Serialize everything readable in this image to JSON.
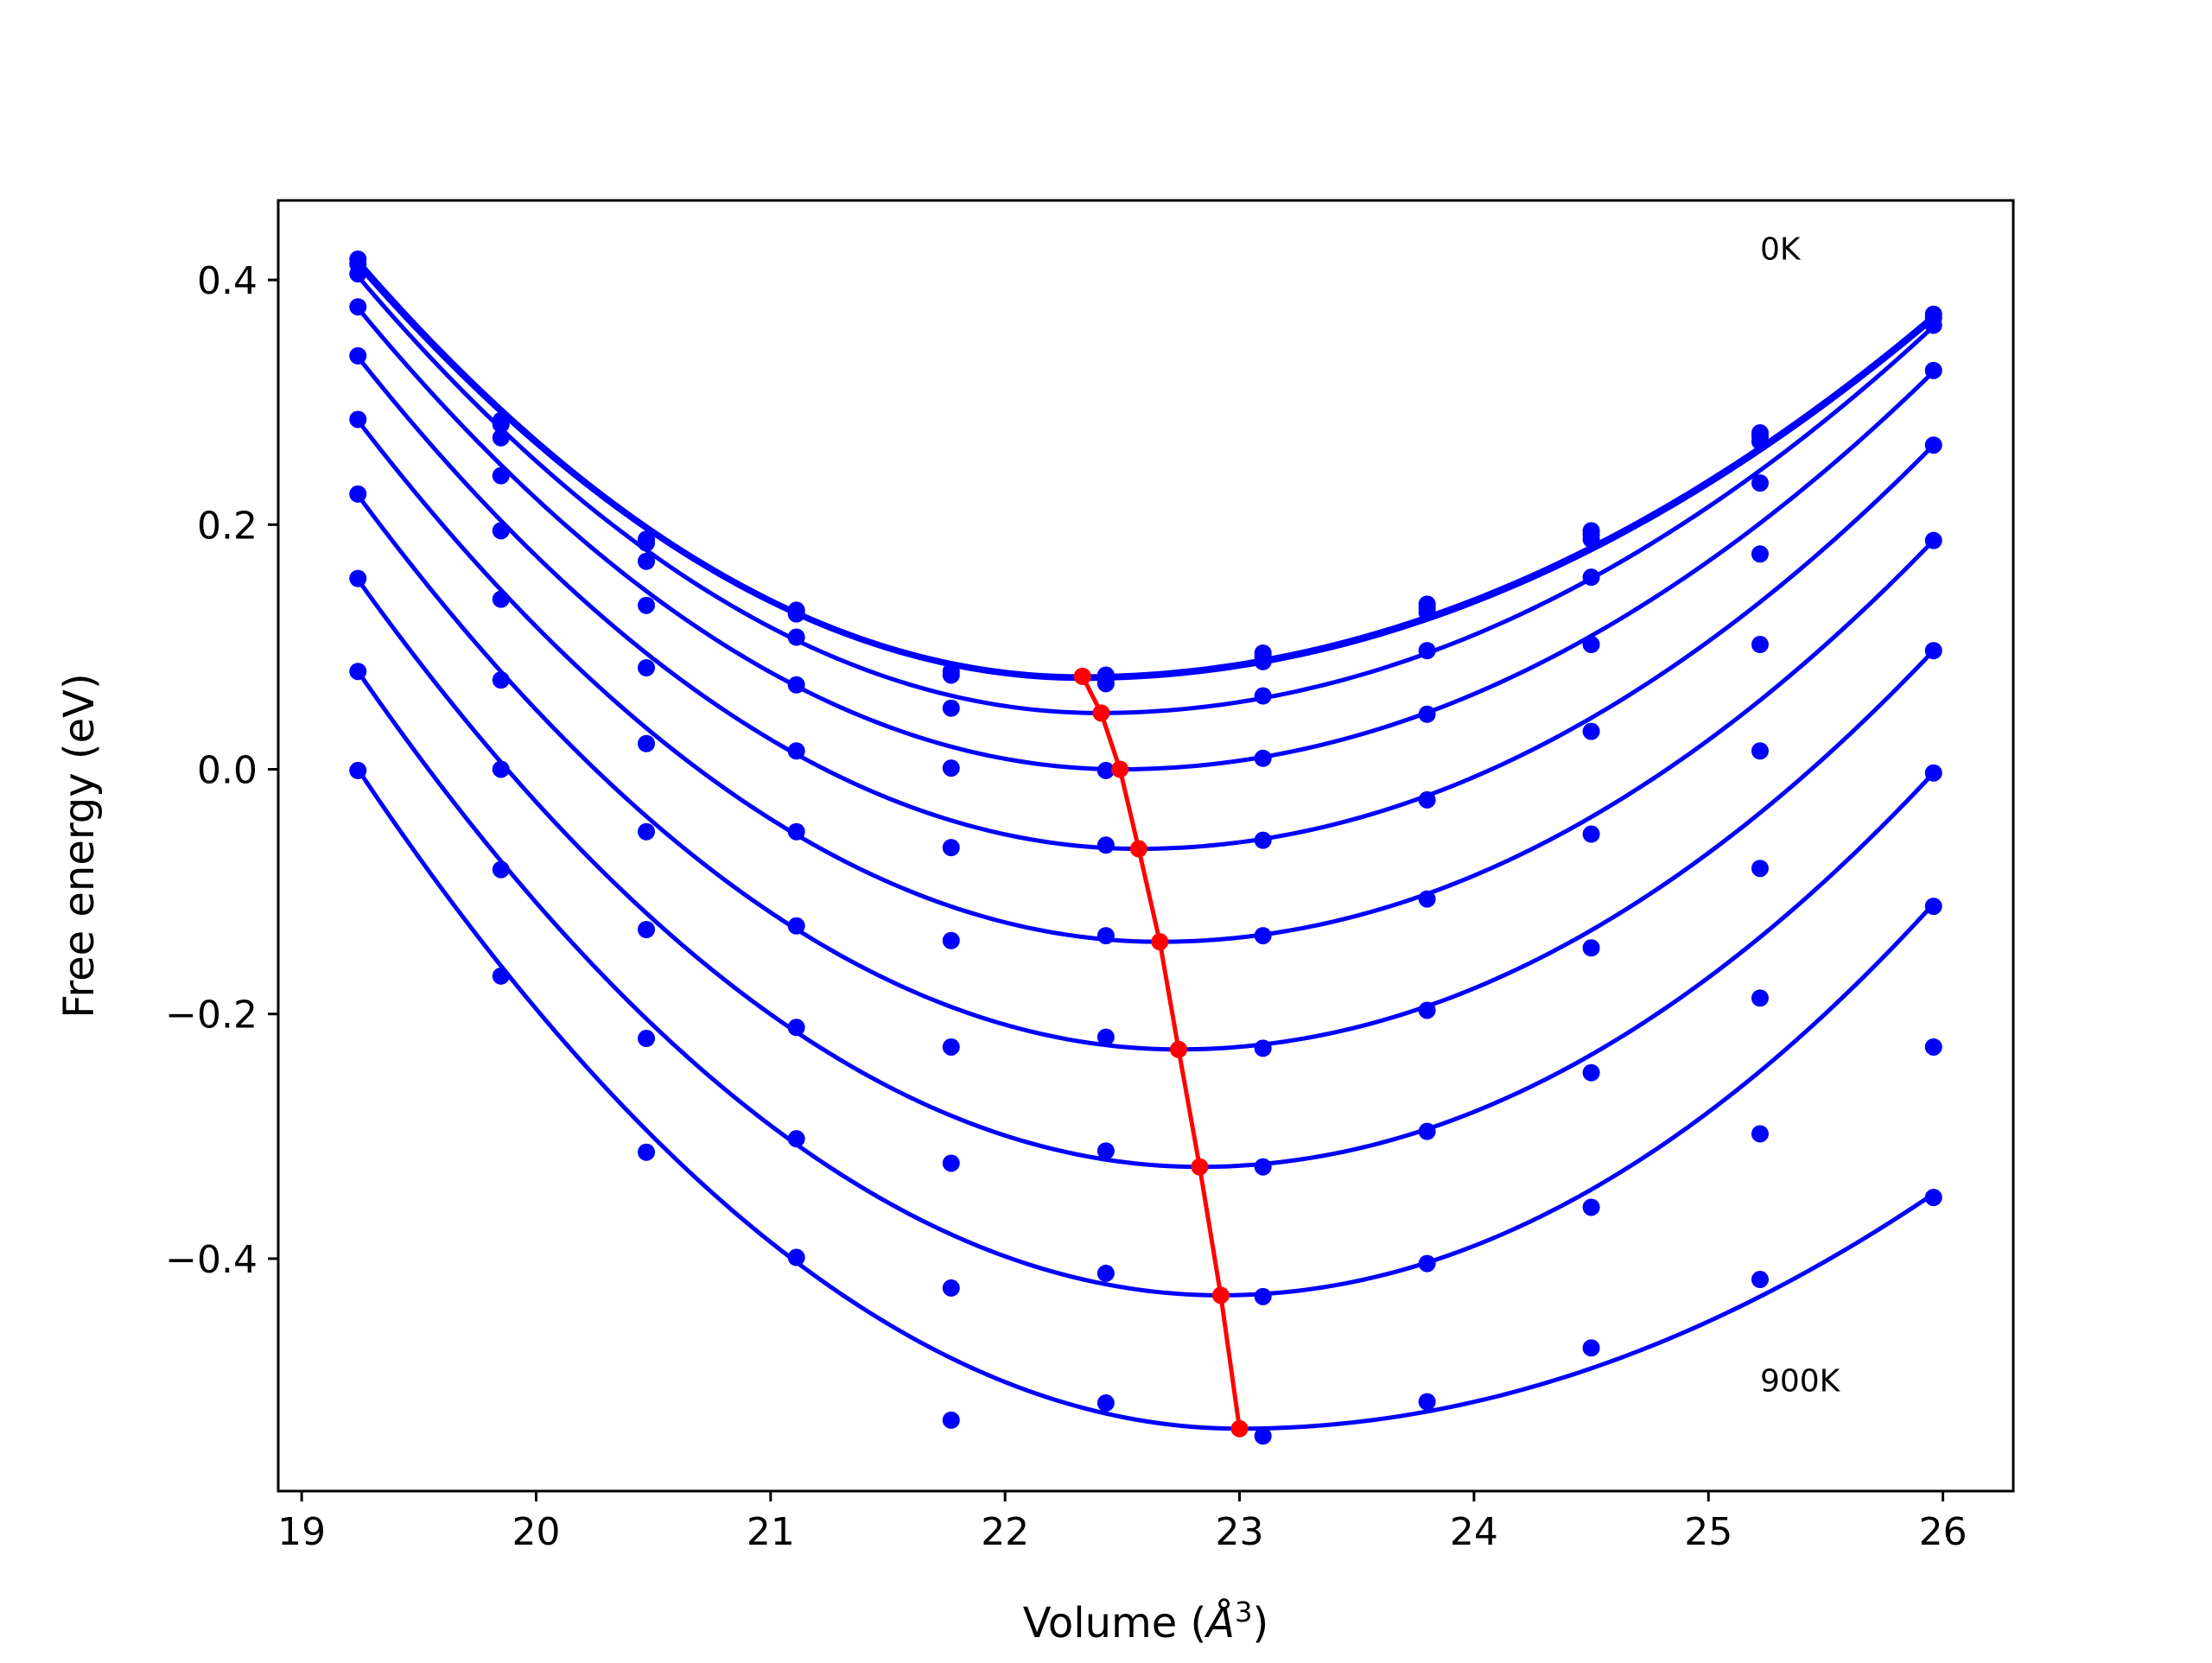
{
  "chart_data": {
    "type": "scatter",
    "title": "",
    "xlabel": "Volume (Å³)",
    "xlabel_text": "Volume (",
    "xlabel_unit": "Å",
    "xlabel_exp": "3",
    "xlabel_close": ")",
    "ylabel": "Free energy (eV)",
    "xlim": [
      18.9,
      26.3
    ],
    "ylim": [
      -0.59,
      0.465
    ],
    "xticks": [
      19,
      20,
      21,
      22,
      23,
      24,
      25,
      26
    ],
    "xtick_labels": [
      "19",
      "20",
      "21",
      "22",
      "23",
      "24",
      "25",
      "26"
    ],
    "yticks": [
      -0.4,
      -0.2,
      0.0,
      0.2,
      0.4
    ],
    "ytick_labels": [
      "−0.4",
      "−0.2",
      "0.0",
      "0.2",
      "0.4"
    ],
    "grid": false,
    "annotations": [
      {
        "text": "0K",
        "x": 25.22,
        "y": 0.425
      },
      {
        "text": "900K",
        "x": 25.22,
        "y": -0.5
      }
    ],
    "x": [
      19.24,
      19.85,
      20.47,
      21.11,
      21.77,
      22.43,
      23.1,
      23.8,
      24.5,
      25.22,
      25.96
    ],
    "series": [
      {
        "values": [
          0.417,
          0.285,
          0.188,
          0.13,
          0.08,
          0.077,
          0.095,
          0.135,
          0.195,
          0.275,
          0.372
        ]
      },
      {
        "values": [
          0.413,
          0.282,
          0.185,
          0.127,
          0.077,
          0.074,
          0.092,
          0.132,
          0.192,
          0.272,
          0.369
        ]
      },
      {
        "values": [
          0.405,
          0.271,
          0.17,
          0.108,
          0.05,
          0.07,
          0.088,
          0.128,
          0.188,
          0.268,
          0.363
        ]
      },
      {
        "values": [
          0.378,
          0.24,
          0.134,
          0.069,
          0.001,
          -0.001,
          0.06,
          0.097,
          0.157,
          0.234,
          0.326
        ]
      },
      {
        "values": [
          0.338,
          0.195,
          0.083,
          0.015,
          -0.064,
          -0.062,
          0.009,
          0.045,
          0.102,
          0.176,
          0.265
        ]
      },
      {
        "values": [
          0.286,
          0.139,
          0.021,
          -0.051,
          -0.14,
          -0.136,
          -0.058,
          -0.025,
          0.031,
          0.102,
          0.187
        ]
      },
      {
        "values": [
          0.225,
          0.073,
          -0.051,
          -0.128,
          -0.227,
          -0.219,
          -0.136,
          -0.106,
          -0.053,
          0.015,
          0.097
        ]
      },
      {
        "values": [
          0.156,
          0.0,
          -0.131,
          -0.211,
          -0.322,
          -0.312,
          -0.228,
          -0.197,
          -0.146,
          -0.081,
          -0.003
        ]
      },
      {
        "values": [
          0.08,
          -0.082,
          -0.22,
          -0.302,
          -0.424,
          -0.412,
          -0.325,
          -0.296,
          -0.248,
          -0.187,
          -0.112
        ]
      },
      {
        "values": [
          -0.001,
          -0.169,
          -0.313,
          -0.399,
          -0.532,
          -0.518,
          -0.431,
          -0.404,
          -0.358,
          -0.298,
          -0.227
        ]
      },
      {
        "values": [
          null,
          null,
          null,
          null,
          null,
          null,
          -0.545,
          -0.517,
          -0.473,
          -0.417,
          -0.35
        ]
      }
    ],
    "fit_curves": [
      {
        "min_x": 22.32,
        "min_y": 0.076,
        "left_y": 0.416,
        "right_y": 0.371
      },
      {
        "min_x": 22.33,
        "min_y": 0.074,
        "left_y": 0.412,
        "right_y": 0.368
      },
      {
        "min_x": 22.4,
        "min_y": 0.046,
        "left_y": 0.403,
        "right_y": 0.362
      },
      {
        "min_x": 22.49,
        "min_y": 0.0,
        "left_y": 0.377,
        "right_y": 0.325
      },
      {
        "min_x": 22.57,
        "min_y": -0.065,
        "left_y": 0.337,
        "right_y": 0.265
      },
      {
        "min_x": 22.66,
        "min_y": -0.141,
        "left_y": 0.285,
        "right_y": 0.187
      },
      {
        "min_x": 22.74,
        "min_y": -0.229,
        "left_y": 0.224,
        "right_y": 0.097
      },
      {
        "min_x": 22.83,
        "min_y": -0.325,
        "left_y": 0.155,
        "right_y": -0.003
      },
      {
        "min_x": 22.92,
        "min_y": -0.43,
        "left_y": 0.08,
        "right_y": -0.11
      },
      {
        "min_x": 23.0,
        "min_y": -0.539,
        "left_y": 0.0,
        "right_y": -0.347
      }
    ],
    "equilibrium_line": {
      "color": "#ff0000",
      "x": [
        22.33,
        22.41,
        22.49,
        22.57,
        22.66,
        22.74,
        22.83,
        22.92,
        23.0
      ],
      "y": [
        0.076,
        0.046,
        0.0,
        -0.065,
        -0.141,
        -0.229,
        -0.325,
        -0.43,
        -0.539
      ]
    },
    "colors": {
      "curves": "#0000ff",
      "points": "#0000ff",
      "equilibrium": "#ff0000"
    }
  }
}
